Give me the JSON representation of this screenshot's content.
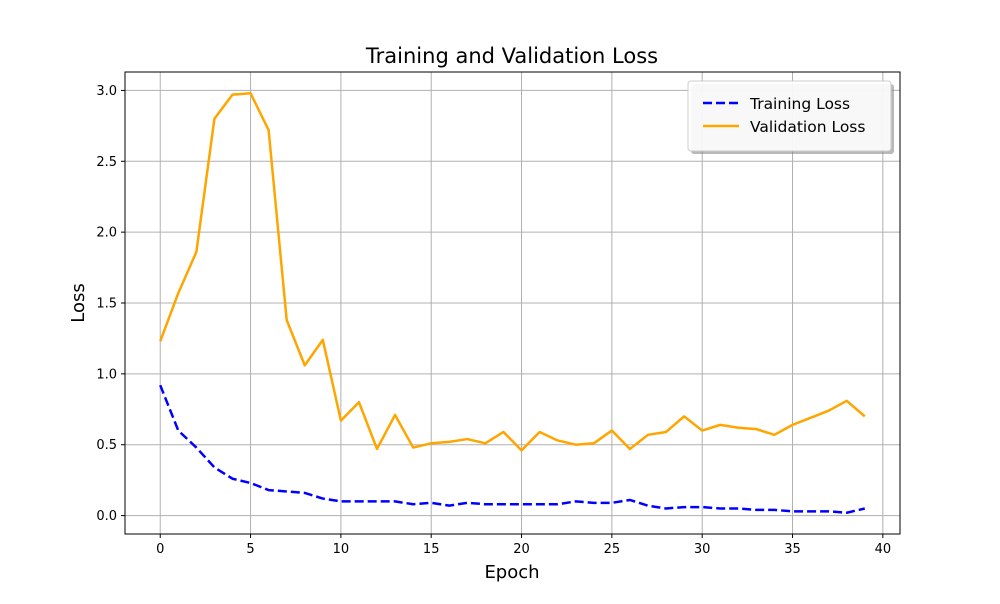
{
  "chart_data": {
    "type": "line",
    "title": "Training and Validation Loss",
    "xlabel": "Epoch",
    "ylabel": "Loss",
    "xlim": [
      -1.95,
      40.95
    ],
    "ylim": [
      -0.13,
      3.13
    ],
    "xticks": [
      0,
      5,
      10,
      15,
      20,
      25,
      30,
      35,
      40
    ],
    "xtick_labels": [
      "0",
      "5",
      "10",
      "15",
      "20",
      "25",
      "30",
      "35",
      "40"
    ],
    "yticks": [
      0.0,
      0.5,
      1.0,
      1.5,
      2.0,
      2.5,
      3.0
    ],
    "ytick_labels": [
      "0.0",
      "0.5",
      "1.0",
      "1.5",
      "2.0",
      "2.5",
      "3.0"
    ],
    "grid": true,
    "legend_position": "top-right",
    "x": [
      0,
      1,
      2,
      3,
      4,
      5,
      6,
      7,
      8,
      9,
      10,
      11,
      12,
      13,
      14,
      15,
      16,
      17,
      18,
      19,
      20,
      21,
      22,
      23,
      24,
      25,
      26,
      27,
      28,
      29,
      30,
      31,
      32,
      33,
      34,
      35,
      36,
      37,
      38,
      39
    ],
    "series": [
      {
        "name": "Training Loss",
        "color": "#0000ff",
        "style": "dashed",
        "values": [
          0.92,
          0.6,
          0.48,
          0.34,
          0.26,
          0.23,
          0.18,
          0.17,
          0.16,
          0.12,
          0.1,
          0.1,
          0.1,
          0.1,
          0.08,
          0.09,
          0.07,
          0.09,
          0.08,
          0.08,
          0.08,
          0.08,
          0.08,
          0.1,
          0.09,
          0.09,
          0.11,
          0.07,
          0.05,
          0.06,
          0.06,
          0.05,
          0.05,
          0.04,
          0.04,
          0.03,
          0.03,
          0.03,
          0.02,
          0.05
        ]
      },
      {
        "name": "Validation Loss",
        "color": "#ffa500",
        "style": "solid",
        "values": [
          1.23,
          1.57,
          1.86,
          2.8,
          2.97,
          2.98,
          2.72,
          1.38,
          1.06,
          1.24,
          0.67,
          0.8,
          0.47,
          0.71,
          0.48,
          0.51,
          0.52,
          0.54,
          0.51,
          0.59,
          0.46,
          0.59,
          0.53,
          0.5,
          0.51,
          0.6,
          0.47,
          0.57,
          0.59,
          0.7,
          0.6,
          0.64,
          0.62,
          0.61,
          0.57,
          0.64,
          0.69,
          0.74,
          0.81,
          0.7
        ]
      }
    ]
  }
}
